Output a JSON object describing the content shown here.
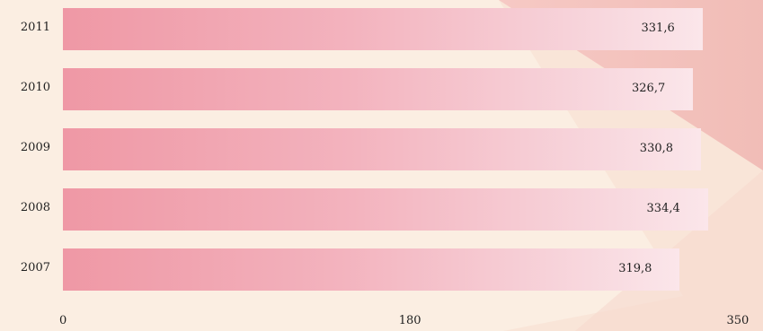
{
  "chart_data": {
    "type": "bar",
    "orientation": "horizontal",
    "categories": [
      "2011",
      "2010",
      "2009",
      "2008",
      "2007"
    ],
    "values": [
      331.6,
      326.7,
      330.8,
      334.4,
      319.8
    ],
    "value_labels": [
      "331,6",
      "326,7",
      "330,8",
      "334,4",
      "319,8"
    ],
    "x_ticks": [
      "0",
      "180",
      "350"
    ],
    "xlim": [
      0,
      350
    ],
    "grid": false,
    "colors": {
      "bar_start": "#ef98a5",
      "bar_end": "#fbe6ea",
      "background": "#fbeee2"
    }
  }
}
